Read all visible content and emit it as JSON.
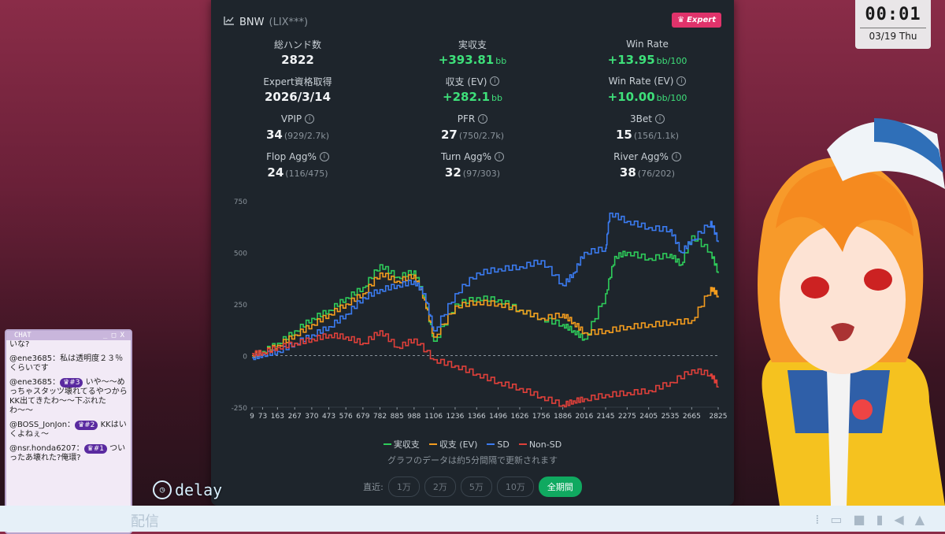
{
  "header": {
    "title": "BNW",
    "subtitle": "(LIX***)",
    "badge": "Expert"
  },
  "stats": [
    {
      "label": "総ハンド数",
      "value": "2822",
      "unit": "",
      "detail": "",
      "green": false,
      "info": false
    },
    {
      "label": "実収支",
      "value": "+393.81",
      "unit": "bb",
      "detail": "",
      "green": true,
      "info": false
    },
    {
      "label": "Win Rate",
      "value": "+13.95",
      "unit": "bb/100",
      "detail": "",
      "green": true,
      "info": false
    },
    {
      "label": "Expert資格取得",
      "value": "2026/3/14",
      "unit": "",
      "detail": "",
      "green": false,
      "info": false
    },
    {
      "label": "収支 (EV)",
      "value": "+282.1",
      "unit": "bb",
      "detail": "",
      "green": true,
      "info": true
    },
    {
      "label": "Win Rate (EV)",
      "value": "+10.00",
      "unit": "bb/100",
      "detail": "",
      "green": true,
      "info": true
    },
    {
      "label": "VPIP",
      "value": "34",
      "unit": "",
      "detail": "(929/2.7k)",
      "green": false,
      "info": true
    },
    {
      "label": "PFR",
      "value": "27",
      "unit": "",
      "detail": "(750/2.7k)",
      "green": false,
      "info": true
    },
    {
      "label": "3Bet",
      "value": "15",
      "unit": "",
      "detail": "(156/1.1k)",
      "green": false,
      "info": true
    },
    {
      "label": "Flop Agg%",
      "value": "24",
      "unit": "",
      "detail": "(116/475)",
      "green": false,
      "info": true
    },
    {
      "label": "Turn Agg%",
      "value": "32",
      "unit": "",
      "detail": "(97/303)",
      "green": false,
      "info": true
    },
    {
      "label": "River Agg%",
      "value": "38",
      "unit": "",
      "detail": "(76/202)",
      "green": false,
      "info": true
    }
  ],
  "chart_data": {
    "type": "line",
    "ylim": [
      -250,
      750
    ],
    "yticks": [
      750,
      500,
      250,
      0,
      -250
    ],
    "xticks": [
      9,
      73,
      163,
      267,
      370,
      473,
      576,
      679,
      782,
      885,
      988,
      1106,
      1236,
      1366,
      1496,
      1626,
      1756,
      1886,
      2016,
      2145,
      2275,
      2405,
      2535,
      2665,
      2825
    ],
    "colors": {
      "grid": "#333c44",
      "axis": "#8a939b"
    },
    "series": [
      {
        "name": "実収支",
        "color": "#2ecc5a",
        "x": [
          9,
          73,
          163,
          267,
          370,
          473,
          576,
          679,
          782,
          885,
          988,
          1050,
          1106,
          1236,
          1366,
          1496,
          1626,
          1756,
          1886,
          1950,
          2016,
          2145,
          2200,
          2275,
          2405,
          2535,
          2600,
          2665,
          2780,
          2825
        ],
        "y": [
          0,
          20,
          60,
          120,
          180,
          220,
          280,
          330,
          440,
          380,
          410,
          280,
          70,
          250,
          280,
          270,
          220,
          180,
          150,
          120,
          80,
          300,
          480,
          500,
          470,
          490,
          440,
          580,
          500,
          400
        ]
      },
      {
        "name": "収支 (EV)",
        "color": "#f39c1e",
        "x": [
          9,
          73,
          163,
          267,
          370,
          473,
          576,
          679,
          782,
          885,
          988,
          1050,
          1106,
          1236,
          1366,
          1496,
          1626,
          1756,
          1886,
          1950,
          2016,
          2145,
          2275,
          2405,
          2535,
          2665,
          2780,
          2825
        ],
        "y": [
          0,
          15,
          50,
          100,
          150,
          200,
          250,
          300,
          400,
          360,
          390,
          270,
          90,
          240,
          260,
          250,
          220,
          180,
          200,
          160,
          110,
          120,
          140,
          150,
          160,
          170,
          330,
          290
        ]
      },
      {
        "name": "SD",
        "color": "#3b7bf0",
        "x": [
          9,
          73,
          163,
          267,
          370,
          473,
          576,
          679,
          782,
          885,
          988,
          1050,
          1106,
          1236,
          1366,
          1496,
          1626,
          1756,
          1886,
          1950,
          2016,
          2145,
          2170,
          2275,
          2405,
          2535,
          2600,
          2665,
          2780,
          2825
        ],
        "y": [
          -10,
          5,
          20,
          60,
          100,
          140,
          200,
          280,
          320,
          340,
          360,
          300,
          120,
          300,
          400,
          420,
          430,
          460,
          340,
          400,
          500,
          520,
          690,
          650,
          620,
          610,
          500,
          560,
          650,
          550
        ]
      },
      {
        "name": "Non-SD",
        "color": "#e0403a",
        "x": [
          9,
          73,
          163,
          267,
          370,
          473,
          576,
          679,
          782,
          885,
          988,
          1106,
          1236,
          1366,
          1496,
          1626,
          1756,
          1886,
          1950,
          2016,
          2145,
          2275,
          2405,
          2535,
          2665,
          2780,
          2825
        ],
        "y": [
          10,
          15,
          40,
          60,
          80,
          100,
          90,
          60,
          120,
          40,
          80,
          -20,
          -50,
          -90,
          -130,
          -160,
          -200,
          -240,
          -220,
          -210,
          -190,
          -180,
          -170,
          -130,
          -70,
          -90,
          -150
        ]
      }
    ]
  },
  "legend": [
    {
      "label": "実収支",
      "color": "#2ecc5a"
    },
    {
      "label": "収支 (EV)",
      "color": "#f39c1e"
    },
    {
      "label": "SD",
      "color": "#3b7bf0"
    },
    {
      "label": "Non-SD",
      "color": "#e0403a"
    }
  ],
  "note": "グラフのデータは約5分間隔で更新されます",
  "ranges": {
    "label": "直近:",
    "buttons": [
      "1万",
      "2万",
      "5万",
      "10万",
      "全期間"
    ]
  },
  "clock": {
    "time": "00:01",
    "date": "03/19 Thu"
  },
  "chat": {
    "title": "CHAT",
    "controls": "_ □ X",
    "messages": [
      {
        "user": "",
        "badge": "",
        "text": "いな?"
      },
      {
        "user": "@ene3685：",
        "badge": "",
        "text": "私は透明度２３％くらいです"
      },
      {
        "user": "@ene3685：",
        "badge": "♛#3",
        "text": "いや〜〜めっちゃスタッツ壊れてるやつからKK出てきたわ〜〜下ぶれたわ〜〜"
      },
      {
        "user": "@BOSS_JonJon：",
        "badge": "♛#2",
        "text": "KKはいくよねぇ〜"
      },
      {
        "user": "@nsr.honda6207：",
        "badge": "♛#1",
        "text": "ついったあ壊れた?俺環?"
      }
    ]
  },
  "overlay": {
    "delay": "delay",
    "bottom_text": "配信"
  }
}
